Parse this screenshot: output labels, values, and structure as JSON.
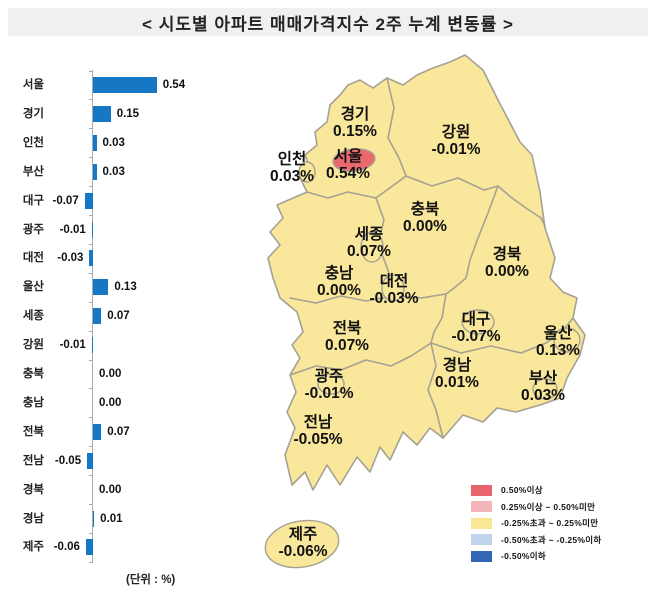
{
  "title": "<  시도별  아파트  매매가격지수  2주  누계  변동률  >",
  "chart_data": {
    "type": "bar",
    "orientation": "horizontal",
    "title": "시도별 아파트 매매가격지수 2주 누계 변동률",
    "unit_label": "(단위 : %)",
    "categories": [
      "서울",
      "경기",
      "인천",
      "부산",
      "대구",
      "광주",
      "대전",
      "울산",
      "세종",
      "강원",
      "충북",
      "충남",
      "전북",
      "전남",
      "경북",
      "경남",
      "제주"
    ],
    "values": [
      0.54,
      0.15,
      0.03,
      0.03,
      -0.07,
      -0.01,
      -0.03,
      0.13,
      0.07,
      -0.01,
      0.0,
      0.0,
      0.07,
      -0.05,
      0.0,
      0.01,
      -0.06
    ],
    "value_labels": [
      "0.54",
      "0.15",
      "0.03",
      "0.03",
      "-0.07",
      "-0.01",
      "-0.03",
      "0.13",
      "0.07",
      "-0.01",
      "0.00",
      "0.00",
      "0.07",
      "-0.05",
      "0.00",
      "0.01",
      "-0.06"
    ],
    "xlim": [
      -0.1,
      0.6
    ],
    "bar_color": "#1677C4",
    "axis_color": "#a9a9a9"
  },
  "map": {
    "fill_color": "#F9E79B",
    "highlight_color": "#E9696E",
    "border_color": "#A5A193",
    "regions": [
      {
        "name": "경기",
        "value": "0.15%"
      },
      {
        "name": "강원",
        "value": "-0.01%"
      },
      {
        "name": "인천",
        "value": "0.03%"
      },
      {
        "name": "서울",
        "value": "0.54%",
        "highlight": true
      },
      {
        "name": "충북",
        "value": "0.00%"
      },
      {
        "name": "세종",
        "value": "0.07%"
      },
      {
        "name": "경북",
        "value": "0.00%"
      },
      {
        "name": "충남",
        "value": "0.00%"
      },
      {
        "name": "대전",
        "value": "-0.03%"
      },
      {
        "name": "대구",
        "value": "-0.07%"
      },
      {
        "name": "울산",
        "value": "0.13%"
      },
      {
        "name": "전북",
        "value": "0.07%"
      },
      {
        "name": "경남",
        "value": "0.01%"
      },
      {
        "name": "부산",
        "value": "0.03%"
      },
      {
        "name": "광주",
        "value": "-0.01%"
      },
      {
        "name": "전남",
        "value": "-0.05%"
      },
      {
        "name": "제주",
        "value": "-0.06%"
      }
    ]
  },
  "legend": {
    "items": [
      {
        "label": "0.50%이상",
        "color": "#E8646C"
      },
      {
        "label": "0.25%이상 ~ 0.50%미만",
        "color": "#F2B6BA"
      },
      {
        "label": "-0.25%초과 ~ 0.25%미만",
        "color": "#F8E793"
      },
      {
        "label": "-0.50%초과 ~ -0.25%이하",
        "color": "#BFD3EC"
      },
      {
        "label": "-0.50%이하",
        "color": "#3367B5"
      }
    ]
  }
}
